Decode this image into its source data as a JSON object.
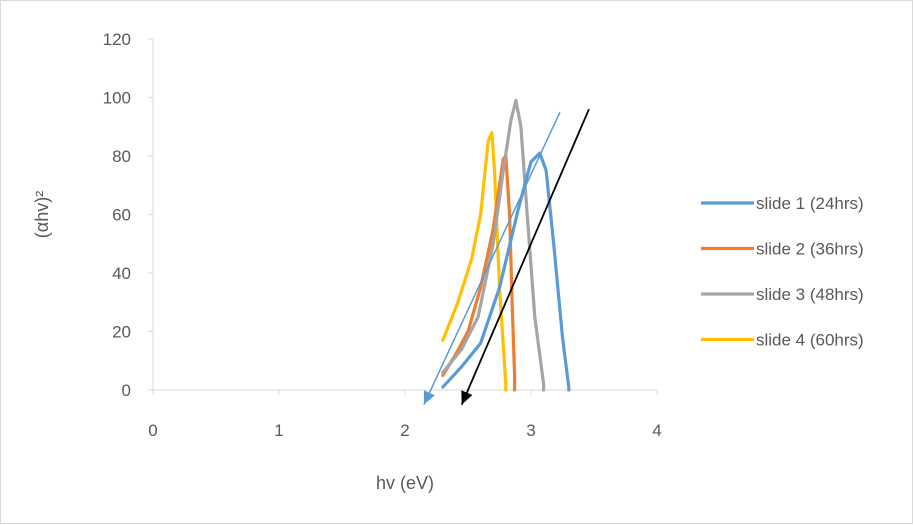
{
  "chart_data": {
    "type": "line",
    "title": "",
    "xlabel": "hv (eV)",
    "ylabel": "(αhv)²",
    "xlim": [
      0,
      4
    ],
    "ylim": [
      0,
      120
    ],
    "x_ticks": [
      0,
      1,
      2,
      3,
      4
    ],
    "y_ticks": [
      0,
      20,
      40,
      60,
      80,
      100,
      120
    ],
    "grid": false,
    "legend_position": "right",
    "series": [
      {
        "name": "slide 1 (24hrs)",
        "color": "#5b9bd5",
        "points": [
          [
            2.3,
            1
          ],
          [
            2.45,
            8
          ],
          [
            2.6,
            16
          ],
          [
            2.75,
            35
          ],
          [
            2.9,
            62
          ],
          [
            3.0,
            78
          ],
          [
            3.07,
            81
          ],
          [
            3.12,
            75
          ],
          [
            3.18,
            50
          ],
          [
            3.25,
            18
          ],
          [
            3.3,
            1
          ],
          [
            3.3,
            0
          ]
        ]
      },
      {
        "name": "slide 2 (36hrs)",
        "color": "#ed7d31",
        "points": [
          [
            2.3,
            5
          ],
          [
            2.4,
            12
          ],
          [
            2.5,
            20
          ],
          [
            2.6,
            35
          ],
          [
            2.7,
            55
          ],
          [
            2.78,
            79
          ],
          [
            2.8,
            80
          ],
          [
            2.83,
            60
          ],
          [
            2.85,
            30
          ],
          [
            2.87,
            5
          ],
          [
            2.87,
            0
          ]
        ]
      },
      {
        "name": "slide 3 (48hrs)",
        "color": "#a5a5a5",
        "points": [
          [
            2.3,
            6
          ],
          [
            2.45,
            14
          ],
          [
            2.58,
            25
          ],
          [
            2.7,
            50
          ],
          [
            2.78,
            75
          ],
          [
            2.84,
            92
          ],
          [
            2.88,
            99
          ],
          [
            2.92,
            90
          ],
          [
            2.97,
            60
          ],
          [
            3.03,
            25
          ],
          [
            3.1,
            2
          ],
          [
            3.1,
            0
          ]
        ]
      },
      {
        "name": "slide 4 (60hrs)",
        "color": "#ffc000",
        "points": [
          [
            2.3,
            17
          ],
          [
            2.42,
            30
          ],
          [
            2.53,
            45
          ],
          [
            2.6,
            60
          ],
          [
            2.66,
            85
          ],
          [
            2.69,
            88
          ],
          [
            2.71,
            75
          ],
          [
            2.75,
            35
          ],
          [
            2.8,
            2
          ],
          [
            2.8,
            0
          ]
        ]
      }
    ],
    "annotations": [
      {
        "type": "arrow",
        "color": "#5b9bd5",
        "from": [
          3.23,
          95
        ],
        "to": [
          2.15,
          -5
        ]
      },
      {
        "type": "arrow",
        "color": "#000000",
        "from": [
          3.46,
          96
        ],
        "to": [
          2.45,
          -5
        ]
      }
    ],
    "fill_to_x": [
      {
        "series": 0,
        "from": 3.3,
        "to": 2.3
      },
      {
        "series": 1,
        "from": 2.87,
        "to": 2.3
      },
      {
        "series": 2,
        "from": 3.1,
        "to": 2.3
      },
      {
        "series": 3,
        "from": 2.8,
        "to": 2.3
      }
    ]
  }
}
